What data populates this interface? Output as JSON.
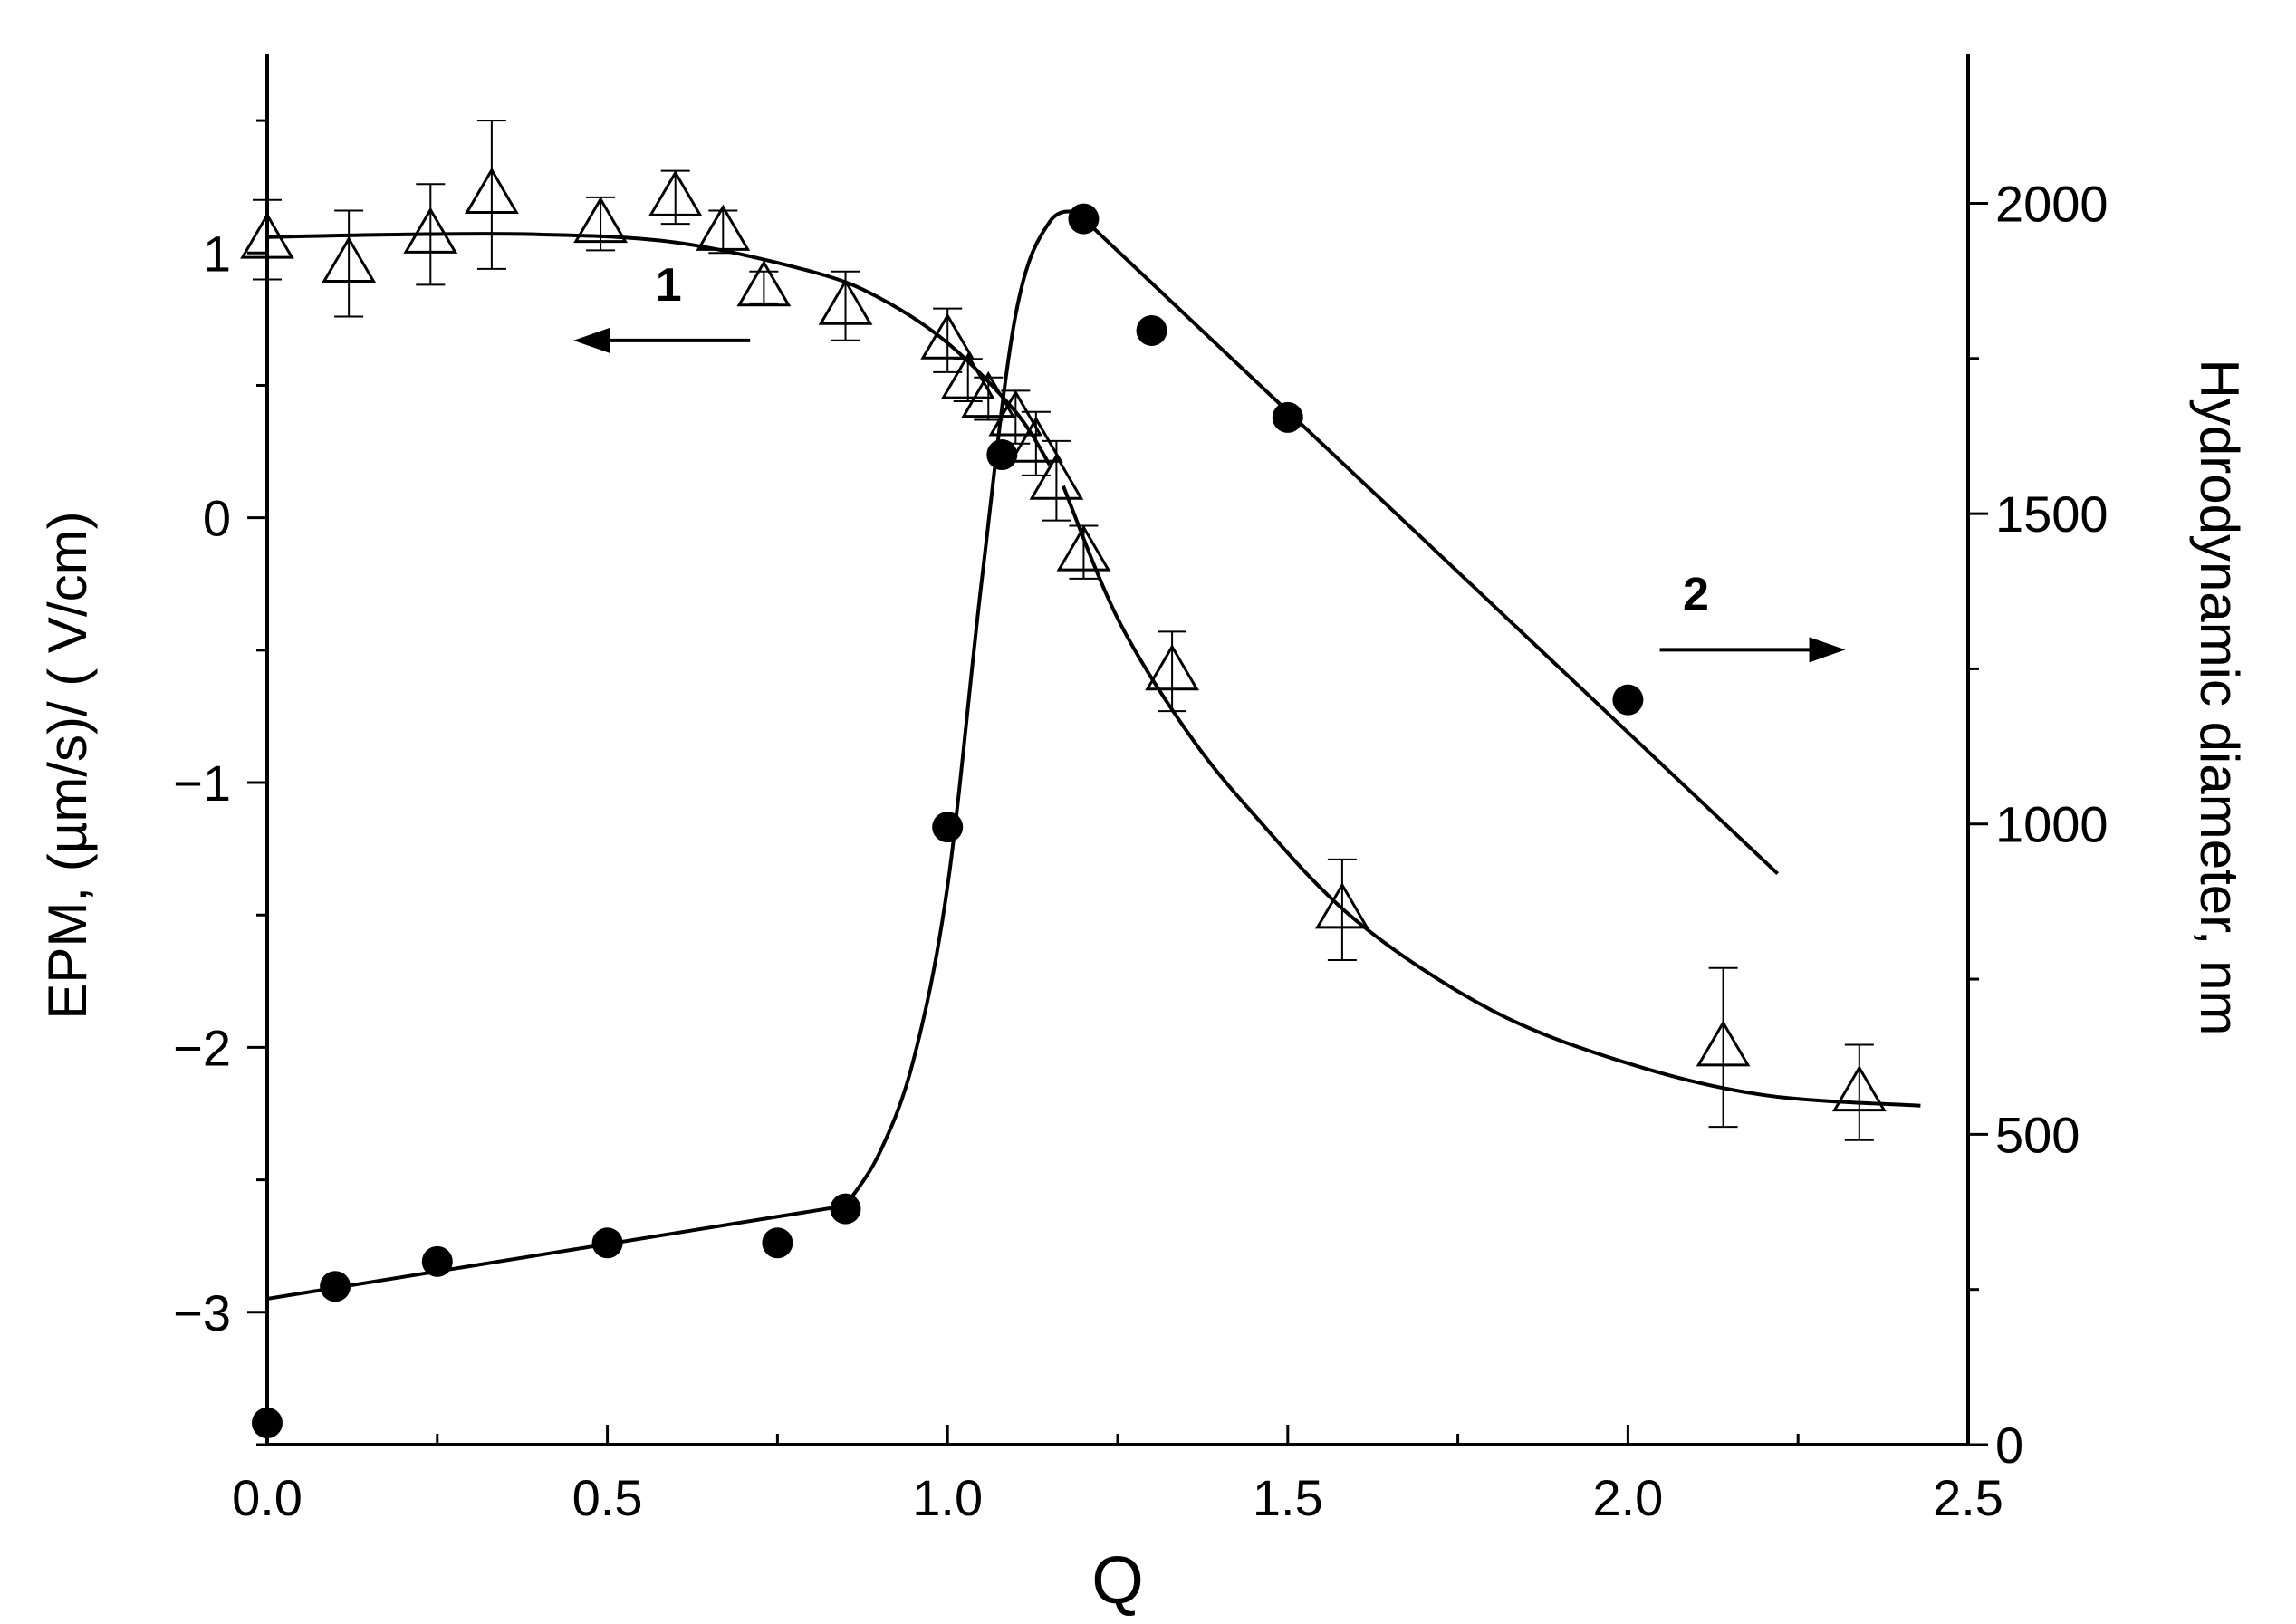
{
  "chart_data": {
    "type": "scatter",
    "xlabel": "Q",
    "ylabel_left": "EPM, (µm/s)/ ( V/cm)",
    "ylabel_right": "Hydrodynamic diameter, nm",
    "xlim": [
      0.0,
      2.5
    ],
    "ylim_left": [
      -3.5,
      1.75
    ],
    "ylim_right": [
      0,
      2240
    ],
    "x_ticks": [
      "0.0",
      "0.5",
      "1.0",
      "1.5",
      "2.0",
      "2.5"
    ],
    "y_left_ticks": [
      "−3",
      "−2",
      "−1",
      "0",
      "1"
    ],
    "y_right_ticks": [
      "0",
      "500",
      "1000",
      "1500",
      "2000"
    ],
    "grid": false,
    "legend": "none",
    "annotations": [
      {
        "text": "1",
        "x": 0.59,
        "y": 0.82,
        "axis": "left",
        "arrow": "left"
      },
      {
        "text": "2",
        "x": 2.1,
        "y": 1345,
        "axis": "right",
        "arrow": "right"
      }
    ],
    "series": [
      {
        "name": "1",
        "axis": "left",
        "marker": "open-triangle",
        "x": [
          0.0,
          0.12,
          0.24,
          0.33,
          0.49,
          0.6,
          0.67,
          0.73,
          0.85,
          1.0,
          1.03,
          1.06,
          1.1,
          1.13,
          1.16,
          1.2,
          1.33,
          1.58,
          2.14,
          2.34
        ],
        "y": [
          1.05,
          0.96,
          1.07,
          1.22,
          1.11,
          1.21,
          1.08,
          0.87,
          0.8,
          0.67,
          0.52,
          0.45,
          0.38,
          0.28,
          0.14,
          -0.13,
          -0.58,
          -1.48,
          -2.0,
          -2.17
        ],
        "error": [
          0.15,
          0.2,
          0.19,
          0.28,
          0.1,
          0.1,
          0.08,
          0.06,
          0.13,
          0.12,
          0.08,
          0.08,
          0.1,
          0.12,
          0.15,
          0.1,
          0.15,
          0.19,
          0.3,
          0.18
        ]
      },
      {
        "name": "2",
        "axis": "right",
        "marker": "filled-circle",
        "x": [
          0.0,
          0.1,
          0.25,
          0.5,
          0.75,
          0.85,
          1.0,
          1.08,
          1.2,
          1.3,
          1.5,
          2.0
        ],
        "y": [
          35,
          255,
          295,
          325,
          325,
          380,
          995,
          1595,
          1975,
          1795,
          1655,
          1200
        ]
      }
    ],
    "fit_lines": [
      {
        "name": "1",
        "axis": "left",
        "x": [
          0.0,
          0.2,
          0.4,
          0.6,
          0.8,
          0.9,
          1.0,
          1.1,
          1.15
        ],
        "y": [
          1.06,
          1.07,
          1.07,
          1.04,
          0.93,
          0.83,
          0.66,
          0.4,
          0.2
        ]
      },
      {
        "name": "1",
        "axis": "left",
        "x": [
          1.17,
          1.25,
          1.35,
          1.45,
          1.6,
          1.8,
          2.0,
          2.2,
          2.43
        ],
        "y": [
          0.12,
          -0.38,
          -0.8,
          -1.12,
          -1.52,
          -1.86,
          -2.06,
          -2.18,
          -2.22
        ]
      },
      {
        "name": "2",
        "axis": "right",
        "x": [
          0.0,
          0.85
        ],
        "y": [
          235,
          385
        ]
      },
      {
        "name": "2",
        "axis": "right",
        "x": [
          0.85,
          0.9,
          0.95,
          1.0,
          1.05,
          1.1,
          1.15,
          1.2
        ],
        "y": [
          385,
          470,
          620,
          900,
          1390,
          1820,
          1970,
          1985
        ]
      },
      {
        "name": "2",
        "axis": "right",
        "x": [
          1.2,
          2.22
        ],
        "y": [
          1975,
          920
        ]
      }
    ]
  }
}
